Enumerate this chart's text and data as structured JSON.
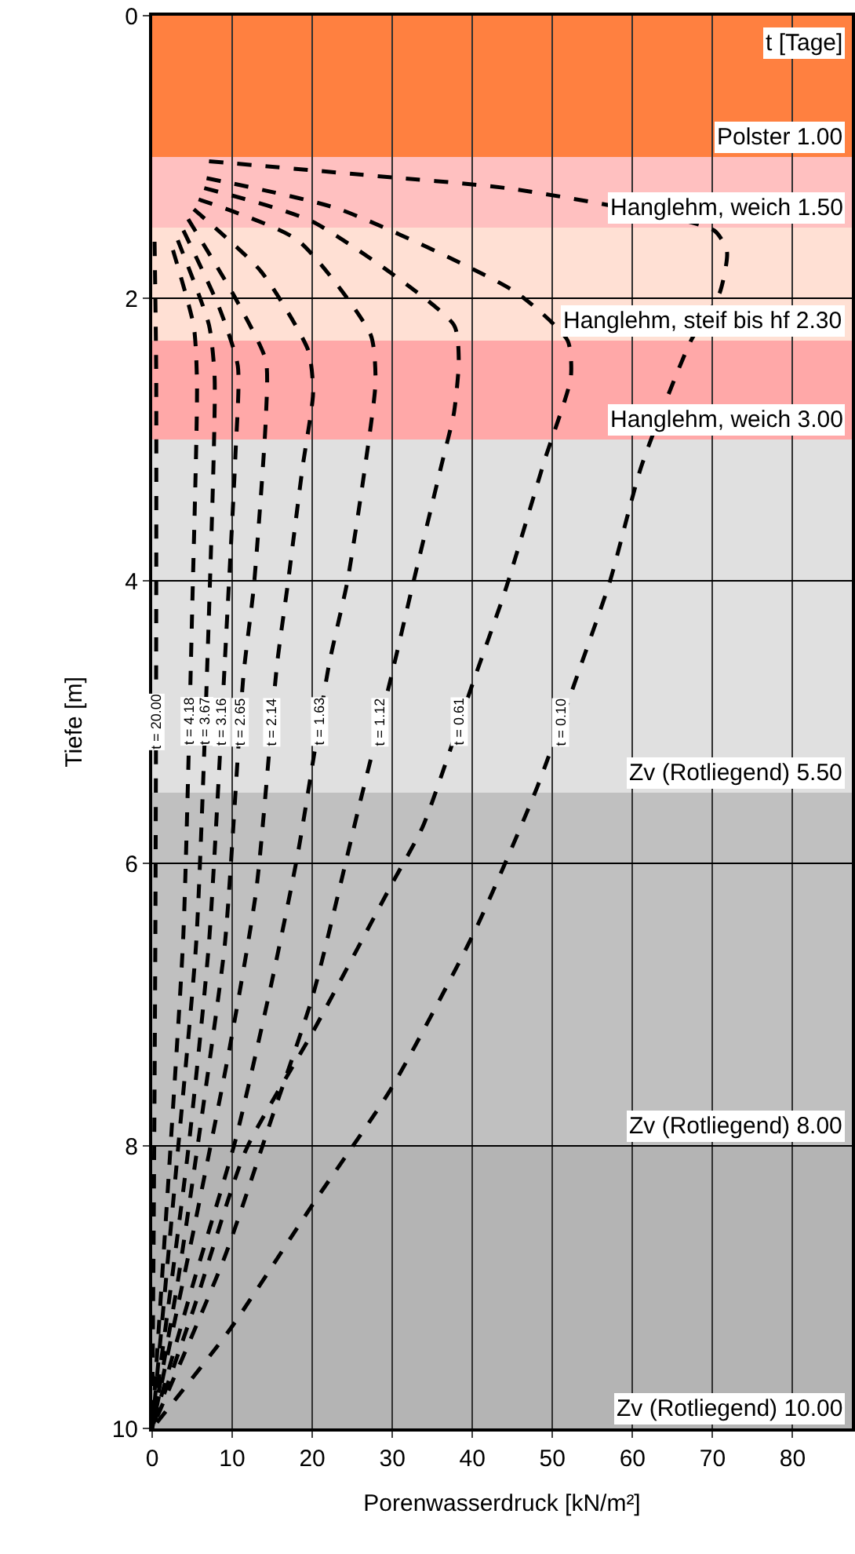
{
  "chart_data": {
    "type": "line",
    "xlabel": "Porenwasserdruck [kN/m²]",
    "ylabel": "Tiefe [m]",
    "xlim": [
      0,
      87.4
    ],
    "xticks": [
      0,
      10,
      20,
      30,
      40,
      50,
      60,
      70,
      80
    ],
    "ylim": [
      10,
      0
    ],
    "yticks": [
      0,
      2,
      4,
      6,
      8,
      10
    ],
    "grid": true,
    "legend": false,
    "marker": "none",
    "line_style": "dashed",
    "annotations": [
      "t [Tage]"
    ],
    "bands": [
      {
        "axis": "y",
        "from": 0,
        "to": 1.0,
        "label": "Polster 1.00",
        "color": "#ff8040"
      },
      {
        "axis": "y",
        "from": 1.0,
        "to": 1.5,
        "label": "Hanglehm, weich 1.50",
        "color": "#ffc0c0"
      },
      {
        "axis": "y",
        "from": 1.5,
        "to": 2.3,
        "label": "Hanglehm, steif bis hf 2.30",
        "color": "#ffe0d4"
      },
      {
        "axis": "y",
        "from": 2.3,
        "to": 3.0,
        "label": "Hanglehm, weich 3.00",
        "color": "#ffa8a8"
      },
      {
        "axis": "y",
        "from": 3.0,
        "to": 5.5,
        "label": "Zv (Rotliegend) 5.50",
        "color": "#e0e0e0"
      },
      {
        "axis": "y",
        "from": 5.5,
        "to": 8.0,
        "label": "Zv (Rotliegend) 8.00",
        "color": "#c0c0c0"
      },
      {
        "axis": "y",
        "from": 8.0,
        "to": 10.0,
        "label": "Zv (Rotliegend) 10.00",
        "color": "#b4b4b4"
      }
    ],
    "series": [
      {
        "name": "t = 0.10",
        "color": "#000000",
        "x": [
          7.1,
          25,
          45.5,
          70.2,
          71.8,
          70.9,
          67.3,
          61.1,
          57.2,
          53.6,
          48.1,
          40.3,
          29.9,
          20.1,
          9.7,
          0
        ],
        "values": [
          1.03,
          1.12,
          1.23,
          1.52,
          1.67,
          1.96,
          2.3,
          3.19,
          4.0,
          4.59,
          5.46,
          6.48,
          7.59,
          8.41,
          9.3,
          10
        ]
      },
      {
        "name": "t = 0.61",
        "color": "#000000",
        "x": [
          6.8,
          23.4,
          45.5,
          51.9,
          52.3,
          49,
          44.1,
          40.2,
          33.8,
          29.9,
          20.1,
          11.7,
          5.2,
          0
        ],
        "values": [
          1.15,
          1.37,
          1.96,
          2.3,
          2.56,
          3.15,
          4.07,
          4.7,
          5.74,
          6.15,
          7.19,
          8.03,
          9.15,
          10
        ]
      },
      {
        "name": "t = 1.12",
        "color": "#000000",
        "x": [
          6.5,
          20.1,
          37.7,
          38.3,
          37.7,
          36.1,
          32.5,
          29.9,
          26,
          20.1,
          14.9,
          9.1,
          0
        ],
        "values": [
          1.22,
          1.46,
          2.19,
          2.44,
          2.81,
          3.19,
          4.04,
          4.67,
          5.56,
          6.93,
          7.81,
          8.78,
          10
        ]
      },
      {
        "name": "t = 1.63",
        "color": "#000000",
        "x": [
          5.8,
          18.2,
          27.3,
          27.9,
          26.6,
          24.4,
          22.1,
          18.2,
          14.9,
          10.4,
          5.2,
          0
        ],
        "values": [
          1.3,
          1.59,
          2.26,
          2.59,
          3.19,
          4.0,
          4.59,
          5.93,
          6.85,
          7.96,
          8.96,
          10
        ]
      },
      {
        "name": "t = 2.14",
        "color": "#000000",
        "x": [
          5.2,
          13.6,
          19.5,
          20.1,
          18.8,
          16.9,
          15.6,
          13,
          9.7,
          5.2,
          0
        ],
        "values": [
          1.37,
          1.81,
          2.37,
          2.67,
          3.19,
          4.04,
          4.59,
          6.19,
          7.3,
          8.59,
          10
        ]
      },
      {
        "name": "t = 2.65",
        "color": "#000000",
        "x": [
          4.5,
          10.4,
          14.2,
          14.2,
          12.7,
          11.4,
          9.1,
          6.5,
          3.2,
          0
        ],
        "values": [
          1.44,
          2.0,
          2.44,
          2.85,
          4.04,
          4.67,
          6.56,
          7.67,
          8.96,
          10
        ]
      },
      {
        "name": "t = 3.16",
        "color": "#000000",
        "x": [
          3.9,
          8.4,
          10.7,
          10.4,
          9.4,
          7.1,
          4.5,
          0
        ],
        "values": [
          1.52,
          2.07,
          2.48,
          3.11,
          4.22,
          6.56,
          8.03,
          10
        ]
      },
      {
        "name": "t = 3.67",
        "color": "#000000",
        "x": [
          3.2,
          7.1,
          7.8,
          7.1,
          5.5,
          3.2,
          0
        ],
        "values": [
          1.59,
          2.19,
          2.56,
          4.22,
          6.56,
          8.04,
          10
        ]
      },
      {
        "name": "t = 4.18",
        "color": "#000000",
        "x": [
          2.6,
          5.2,
          5.6,
          5.0,
          3.9,
          2.3,
          0
        ],
        "values": [
          1.66,
          2.2,
          2.6,
          4.2,
          6.5,
          8.0,
          10
        ]
      },
      {
        "name": "t = 20.00",
        "color": "#000000",
        "x": [
          0.3,
          0.5,
          0.5,
          0.4,
          0.2,
          0
        ],
        "values": [
          1.6,
          2.5,
          4.5,
          6.5,
          8.5,
          10
        ]
      }
    ]
  }
}
